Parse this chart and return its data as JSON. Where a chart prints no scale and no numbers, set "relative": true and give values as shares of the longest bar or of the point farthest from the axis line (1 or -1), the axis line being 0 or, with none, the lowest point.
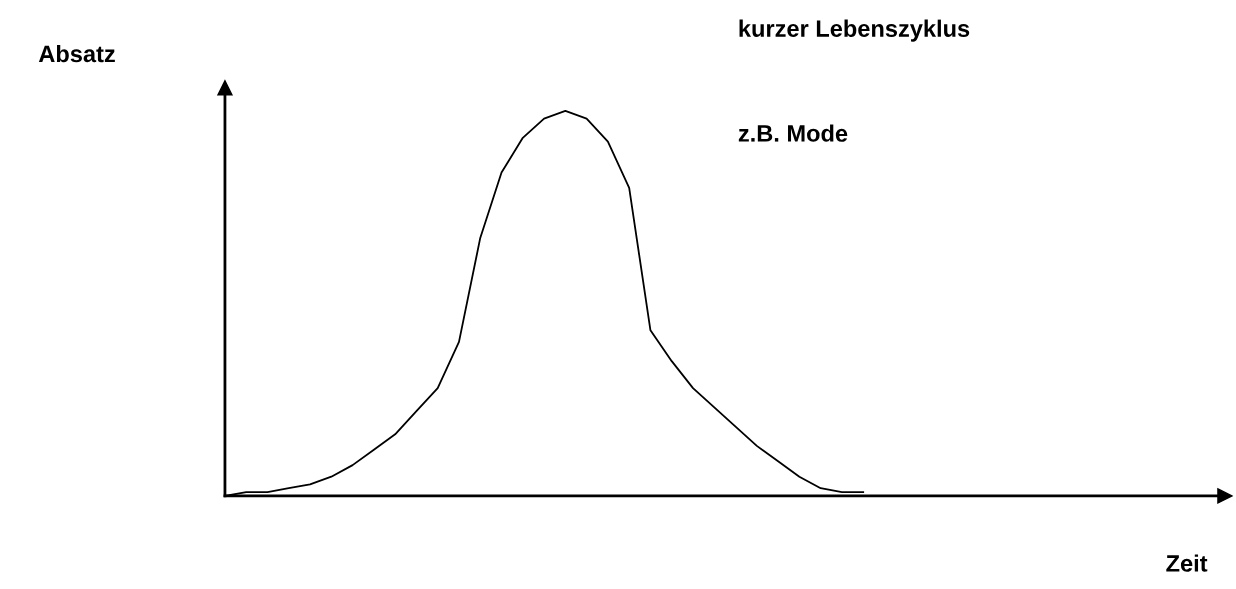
{
  "chart_data": {
    "type": "line",
    "relative": true,
    "annotations": [
      "Absatz",
      "kurzer Lebenszyklus",
      "z.B. Mode",
      "Zeit"
    ],
    "categories": [
      null,
      null,
      null,
      null,
      null,
      null,
      null,
      null,
      null,
      null,
      null,
      null,
      null,
      null,
      null,
      null,
      null,
      null,
      null,
      null,
      null,
      null,
      null,
      null,
      null,
      null,
      null,
      null,
      null,
      null,
      null,
      null,
      null,
      null,
      null,
      null,
      null,
      null,
      null,
      null,
      null,
      null,
      null,
      null,
      null,
      null,
      null,
      null
    ],
    "series": [
      {
        "color": "#000000",
        "values": [
          0.0,
          0.01,
          0.01,
          0.02,
          0.03,
          0.05,
          0.08,
          0.12,
          0.16,
          0.22,
          0.28,
          0.4,
          0.67,
          0.84,
          0.93,
          0.98,
          1.0,
          0.98,
          0.92,
          0.8,
          0.43,
          0.35,
          0.28,
          0.23,
          0.18,
          0.13,
          0.09,
          0.05,
          0.02,
          0.01,
          0.01,
          null,
          null,
          null,
          null,
          null,
          null,
          null,
          null,
          null,
          null,
          null,
          null,
          null,
          null,
          null,
          null,
          null
        ]
      }
    ],
    "grid": false,
    "legend": false,
    "marker": "none",
    "line_style": "solid"
  }
}
